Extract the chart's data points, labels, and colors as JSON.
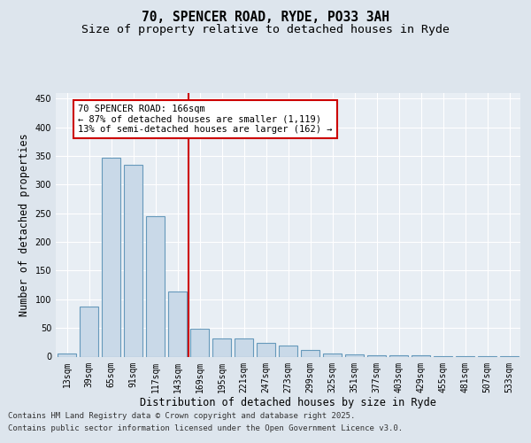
{
  "title_line1": "70, SPENCER ROAD, RYDE, PO33 3AH",
  "title_line2": "Size of property relative to detached houses in Ryde",
  "xlabel": "Distribution of detached houses by size in Ryde",
  "ylabel": "Number of detached properties",
  "categories": [
    "13sqm",
    "39sqm",
    "65sqm",
    "91sqm",
    "117sqm",
    "143sqm",
    "169sqm",
    "195sqm",
    "221sqm",
    "247sqm",
    "273sqm",
    "299sqm",
    "325sqm",
    "351sqm",
    "377sqm",
    "403sqm",
    "429sqm",
    "455sqm",
    "481sqm",
    "507sqm",
    "533sqm"
  ],
  "values": [
    5,
    87,
    347,
    335,
    245,
    113,
    48,
    32,
    32,
    24,
    20,
    12,
    6,
    4,
    3,
    3,
    3,
    1,
    1,
    1,
    1
  ],
  "bar_color": "#c9d9e8",
  "bar_edge_color": "#6699bb",
  "bar_edge_width": 0.8,
  "vline_x_index": 6,
  "vline_color": "#cc0000",
  "annotation_line1": "70 SPENCER ROAD: 166sqm",
  "annotation_line2": "← 87% of detached houses are smaller (1,119)",
  "annotation_line3": "13% of semi-detached houses are larger (162) →",
  "annotation_box_color": "#ffffff",
  "annotation_box_edge": "#cc0000",
  "ylim": [
    0,
    460
  ],
  "yticks": [
    0,
    50,
    100,
    150,
    200,
    250,
    300,
    350,
    400,
    450
  ],
  "bg_color": "#dde5ed",
  "plot_bg_color": "#e8eef4",
  "footer_line1": "Contains HM Land Registry data © Crown copyright and database right 2025.",
  "footer_line2": "Contains public sector information licensed under the Open Government Licence v3.0.",
  "title_fontsize": 10.5,
  "subtitle_fontsize": 9.5,
  "tick_fontsize": 7,
  "label_fontsize": 8.5,
  "annotation_fontsize": 7.5,
  "footer_fontsize": 6.5
}
